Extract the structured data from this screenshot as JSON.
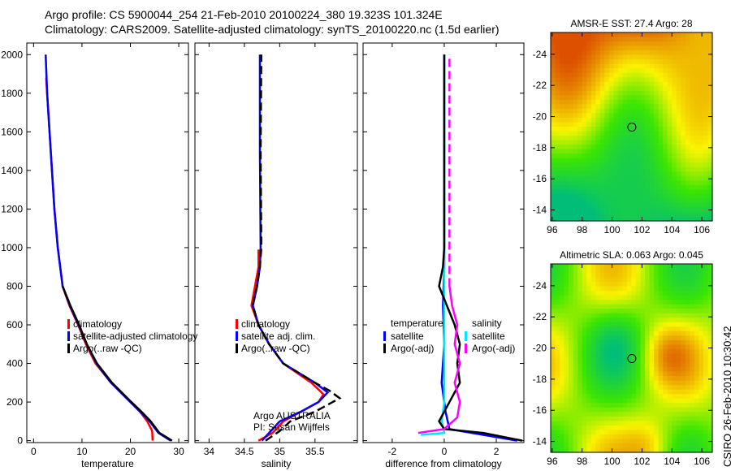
{
  "header": {
    "line1": "Argo profile: CS 5900044_254 21-Feb-2010 20100224_380 19.323S 101.324E",
    "line2": "Climatology: CARS2009. Satellite-adjusted climatology: synTS_20100220.nc (1.5d earlier)"
  },
  "side_label": "CSIRO 26-Feb-2010 10:30:42",
  "credit": {
    "line1": "Argo AUSTRALIA",
    "line2": "PI: Susan Wijffels"
  },
  "colors": {
    "climatology": "#ff0000",
    "satellite": "#0000ff",
    "argo": "#000000",
    "sal_satellite": "#00e5ff",
    "sal_argo": "#ff00ff"
  },
  "chart_data": [
    {
      "type": "line",
      "title": "",
      "xlabel": "temperature",
      "ylabel": "",
      "xlim": [
        -1.4,
        32
      ],
      "ylim": [
        2060,
        -10
      ],
      "xticks": [
        0,
        10,
        20,
        30
      ],
      "yticks": [
        0,
        200,
        400,
        600,
        800,
        1000,
        1200,
        1400,
        1600,
        1800,
        2000
      ],
      "legend": [
        "climatology",
        "satellite-adjusted climatology",
        "Argo(..raw -QC)"
      ],
      "series": [
        {
          "name": "climatology",
          "color": "#ff0000",
          "dash": false,
          "points": [
            [
              24.6,
              0
            ],
            [
              24.5,
              50
            ],
            [
              23.5,
              100
            ],
            [
              22,
              150
            ],
            [
              20,
              200
            ],
            [
              16,
              300
            ],
            [
              12.8,
              400
            ],
            [
              10.8,
              500
            ],
            [
              9.2,
              600
            ],
            [
              7.4,
              700
            ],
            [
              6,
              800
            ],
            [
              5.5,
              900
            ],
            [
              5,
              1000
            ],
            [
              4.3,
              1200
            ],
            [
              3.8,
              1400
            ],
            [
              3.3,
              1600
            ],
            [
              2.8,
              1800
            ],
            [
              2.6,
              1880
            ]
          ]
        },
        {
          "name": "satellite-adjusted climatology",
          "color": "#0000ff",
          "dash": false,
          "points": [
            [
              28.3,
              0
            ],
            [
              25.8,
              40
            ],
            [
              24,
              100
            ],
            [
              22,
              150
            ],
            [
              20,
              200
            ],
            [
              16,
              300
            ],
            [
              13,
              400
            ],
            [
              11,
              500
            ],
            [
              9.3,
              600
            ],
            [
              7.5,
              700
            ],
            [
              6,
              800
            ],
            [
              5.5,
              900
            ],
            [
              5,
              1000
            ],
            [
              4.3,
              1200
            ],
            [
              3.8,
              1400
            ],
            [
              3.3,
              1600
            ],
            [
              2.8,
              1800
            ],
            [
              2.5,
              2000
            ]
          ]
        },
        {
          "name": "Argo(..raw -QC)",
          "color": "#000000",
          "dash": false,
          "points": [
            [
              28.6,
              0
            ],
            [
              26,
              40
            ],
            [
              24.2,
              100
            ],
            [
              22.3,
              150
            ],
            [
              20.2,
              200
            ],
            [
              16.2,
              300
            ],
            [
              13.1,
              400
            ],
            [
              11,
              500
            ],
            [
              9.4,
              600
            ],
            [
              7.6,
              700
            ],
            [
              6,
              800
            ]
          ]
        }
      ]
    },
    {
      "type": "line",
      "xlabel": "salinity",
      "xlim": [
        33.8,
        36.1
      ],
      "ylim": [
        2060,
        -10
      ],
      "xticks": [
        34,
        34.5,
        35,
        35.5
      ],
      "yticks": [],
      "legend": [
        "climatology",
        "satellite adj. clim.",
        "Argo(..raw -QC)"
      ],
      "series": [
        {
          "name": "climatology",
          "color": "#ff0000",
          "dash": false,
          "points": [
            [
              34.7,
              0
            ],
            [
              34.9,
              40
            ],
            [
              35.05,
              100
            ],
            [
              35.3,
              150
            ],
            [
              35.55,
              200
            ],
            [
              35.62,
              240
            ],
            [
              35.45,
              300
            ],
            [
              35.05,
              400
            ],
            [
              34.85,
              500
            ],
            [
              34.7,
              600
            ],
            [
              34.6,
              700
            ],
            [
              34.65,
              800
            ],
            [
              34.7,
              900
            ],
            [
              34.7,
              990
            ]
          ]
        },
        {
          "name": "satellite adj. clim.",
          "color": "#0000ff",
          "dash": false,
          "points": [
            [
              34.75,
              0
            ],
            [
              34.85,
              40
            ],
            [
              35.0,
              100
            ],
            [
              35.3,
              150
            ],
            [
              35.55,
              200
            ],
            [
              35.68,
              250
            ],
            [
              35.5,
              300
            ],
            [
              35.05,
              400
            ],
            [
              34.85,
              500
            ],
            [
              34.7,
              600
            ],
            [
              34.62,
              700
            ],
            [
              34.68,
              800
            ],
            [
              34.72,
              900
            ],
            [
              34.73,
              1000
            ],
            [
              34.72,
              1500
            ],
            [
              34.72,
              2000
            ]
          ]
        },
        {
          "name": "Argo(..raw -QC)",
          "color": "#000000",
          "dash": true,
          "points": [
            [
              34.8,
              0
            ],
            [
              35.0,
              50
            ],
            [
              35.15,
              100
            ],
            [
              35.5,
              150
            ],
            [
              35.75,
              200
            ],
            [
              35.85,
              220
            ],
            [
              35.7,
              260
            ],
            [
              35.5,
              300
            ],
            [
              35.05,
              400
            ],
            [
              34.85,
              500
            ],
            [
              34.7,
              600
            ],
            [
              34.62,
              700
            ],
            [
              34.68,
              800
            ],
            [
              34.72,
              900
            ],
            [
              34.74,
              1000
            ],
            [
              34.73,
              1500
            ],
            [
              34.74,
              2000
            ]
          ]
        }
      ]
    },
    {
      "type": "line",
      "xlabel": "difference from climatology",
      "xlim": [
        -3.12,
        3.06
      ],
      "ylim": [
        2060,
        -10
      ],
      "xticks": [
        -2,
        0,
        2
      ],
      "yticks": [],
      "legend": {
        "temperature_header": "temperature",
        "salinity_header": "salinity",
        "items": [
          "satellite",
          "Argo(-adj)",
          "satellite",
          "Argo(-adj)"
        ]
      },
      "series": [
        {
          "name": "temperature satellite",
          "color": "#0000ff",
          "dash": false,
          "points": [
            [
              2.8,
              0
            ],
            [
              1.5,
              30
            ],
            [
              0.2,
              60
            ],
            [
              0.05,
              150
            ],
            [
              -0.1,
              300
            ],
            [
              0,
              500
            ],
            [
              -0.05,
              700
            ],
            [
              0,
              900
            ],
            [
              0,
              2000
            ]
          ]
        },
        {
          "name": "salinity satellite",
          "color": "#00e5ff",
          "dash": false,
          "points": [
            [
              -0.9,
              30
            ],
            [
              0,
              40
            ],
            [
              -0.1,
              100
            ],
            [
              0,
              200
            ],
            [
              0,
              500
            ],
            [
              0,
              1000
            ],
            [
              0,
              2000
            ]
          ]
        },
        {
          "name": "temperature Argo(-adj)",
          "color": "#000000",
          "dash": false,
          "points": [
            [
              3,
              0
            ],
            [
              1.5,
              40
            ],
            [
              0,
              60
            ],
            [
              -0.2,
              100
            ],
            [
              0.2,
              200
            ],
            [
              0.6,
              300
            ],
            [
              0.5,
              400
            ],
            [
              0.6,
              500
            ],
            [
              0.4,
              600
            ],
            [
              0.1,
              700
            ],
            [
              -0.2,
              800
            ],
            [
              -0.05,
              900
            ],
            [
              0,
              1000
            ],
            [
              0,
              2000
            ]
          ]
        },
        {
          "name": "salinity Argo(-adj)",
          "color": "#ff00ff",
          "dash": false,
          "points": [
            [
              -1,
              40
            ],
            [
              0,
              60
            ],
            [
              0.5,
              120
            ],
            [
              0.6,
              200
            ],
            [
              0.4,
              300
            ],
            [
              0.6,
              400
            ],
            [
              0.4,
              500
            ],
            [
              0.5,
              600
            ],
            [
              0.3,
              700
            ],
            [
              0.2,
              800
            ]
          ]
        },
        {
          "name": "salinity Argo(-adj) deep",
          "color": "#ff00ff",
          "dash": true,
          "points": [
            [
              0.2,
              800
            ],
            [
              0.2,
              1500
            ],
            [
              0.2,
              2000
            ]
          ]
        }
      ]
    },
    {
      "type": "heatmap",
      "title": "AMSR-E SST: 27.4 Argo: 28",
      "xlim": [
        95.9,
        106.7
      ],
      "ylim": [
        -25.4,
        -13.3
      ],
      "xticks": [
        96,
        98,
        100,
        102,
        104,
        106
      ],
      "yticks": [
        -14,
        -16,
        -18,
        -20,
        -22,
        -24
      ],
      "marker": [
        101.324,
        -19.323
      ]
    },
    {
      "type": "heatmap",
      "title": "Altimetric SLA: 0.063 Argo: 0.045",
      "xlim": [
        95.9,
        106.7
      ],
      "ylim": [
        -25.4,
        -13.3
      ],
      "xticks": [
        96,
        98,
        100,
        102,
        104,
        106
      ],
      "yticks": [
        -14,
        -16,
        -18,
        -20,
        -22,
        -24
      ],
      "marker": [
        101.324,
        -19.323
      ]
    }
  ]
}
